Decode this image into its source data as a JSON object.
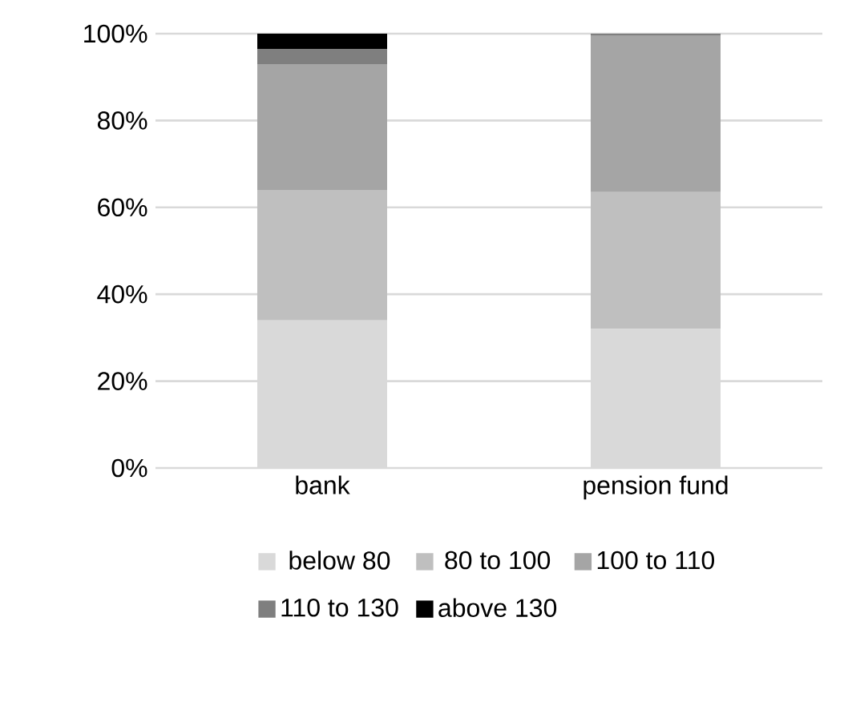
{
  "chart_data": {
    "type": "bar",
    "stacked": true,
    "categories": [
      "bank",
      "pension fund"
    ],
    "series": [
      {
        "name": "below 80",
        "color": "#d9d9d9",
        "values": [
          34,
          32
        ]
      },
      {
        "name": "80 to 100",
        "color": "#bfbfbf",
        "values": [
          30,
          31.5
        ]
      },
      {
        "name": "100 to 110",
        "color": "#a5a5a5",
        "values": [
          29,
          36
        ]
      },
      {
        "name": "110 to 130",
        "color": "#7f7f7f",
        "values": [
          3.5,
          0.5
        ]
      },
      {
        "name": "above 130",
        "color": "#000000",
        "values": [
          3.5,
          0
        ]
      }
    ],
    "ylim": [
      0,
      100
    ],
    "yticks": [
      {
        "value": 0,
        "label": "0%"
      },
      {
        "value": 20,
        "label": "20%"
      },
      {
        "value": 40,
        "label": "40%"
      },
      {
        "value": 60,
        "label": "60%"
      },
      {
        "value": 80,
        "label": "80%"
      },
      {
        "value": 100,
        "label": "100%"
      }
    ],
    "grid": "y",
    "legend": "bottom"
  }
}
